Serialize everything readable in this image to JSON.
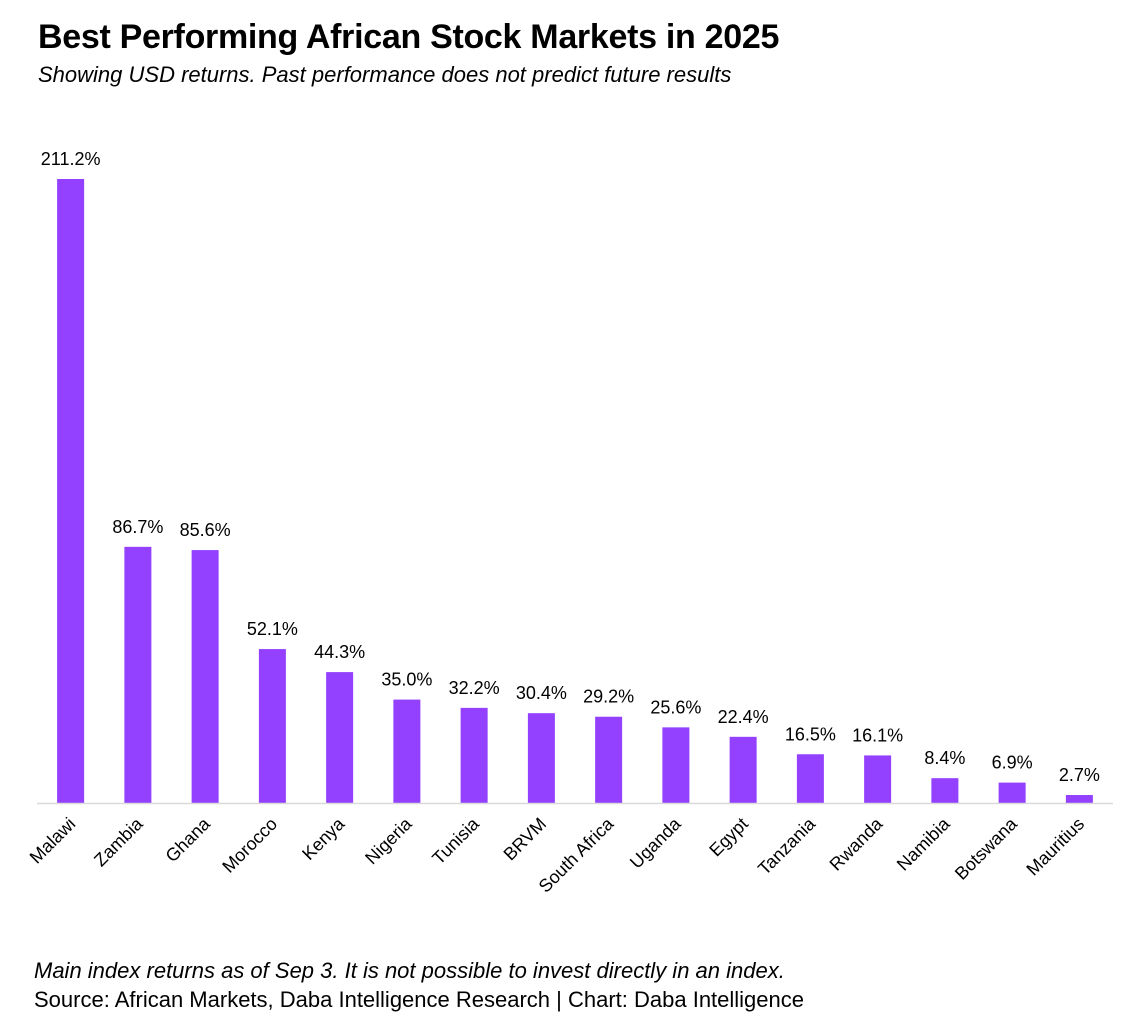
{
  "header": {
    "title": "Best Performing African Stock Markets in 2025",
    "subtitle": "Showing USD returns. Past performance does not predict future results"
  },
  "footer": {
    "note": "Main index returns as of Sep 3. It is not possible to invest directly in an index.",
    "source": "Source: African Markets, Daba Intelligence Research | Chart: Daba Intelligence"
  },
  "colors": {
    "bar": "#9340ff",
    "axis": "#d9d9d9",
    "text": "#000000"
  },
  "chart_data": {
    "type": "bar",
    "title": "Best Performing African Stock Markets in 2025",
    "subtitle": "Showing USD returns. Past performance does not predict future results",
    "categories": [
      "Malawi",
      "Zambia",
      "Ghana",
      "Morocco",
      "Kenya",
      "Nigeria",
      "Tunisia",
      "BRVM",
      "South Africa",
      "Uganda",
      "Egypt",
      "Tanzania",
      "Rwanda",
      "Namibia",
      "Botswana",
      "Mauritius"
    ],
    "values": [
      211.2,
      86.7,
      85.6,
      52.1,
      44.3,
      35.0,
      32.2,
      30.4,
      29.2,
      25.6,
      22.4,
      16.5,
      16.1,
      8.4,
      6.9,
      2.7
    ],
    "labels": [
      "211.2%",
      "86.7%",
      "85.6%",
      "52.1%",
      "44.3%",
      "35.0%",
      "32.2%",
      "30.4%",
      "29.2%",
      "25.6%",
      "22.4%",
      "16.5%",
      "16.1%",
      "8.4%",
      "6.9%",
      "2.7%"
    ],
    "ylim": [
      0,
      211.2
    ],
    "grid": false,
    "legend": "none",
    "xlabel": "",
    "ylabel": ""
  }
}
